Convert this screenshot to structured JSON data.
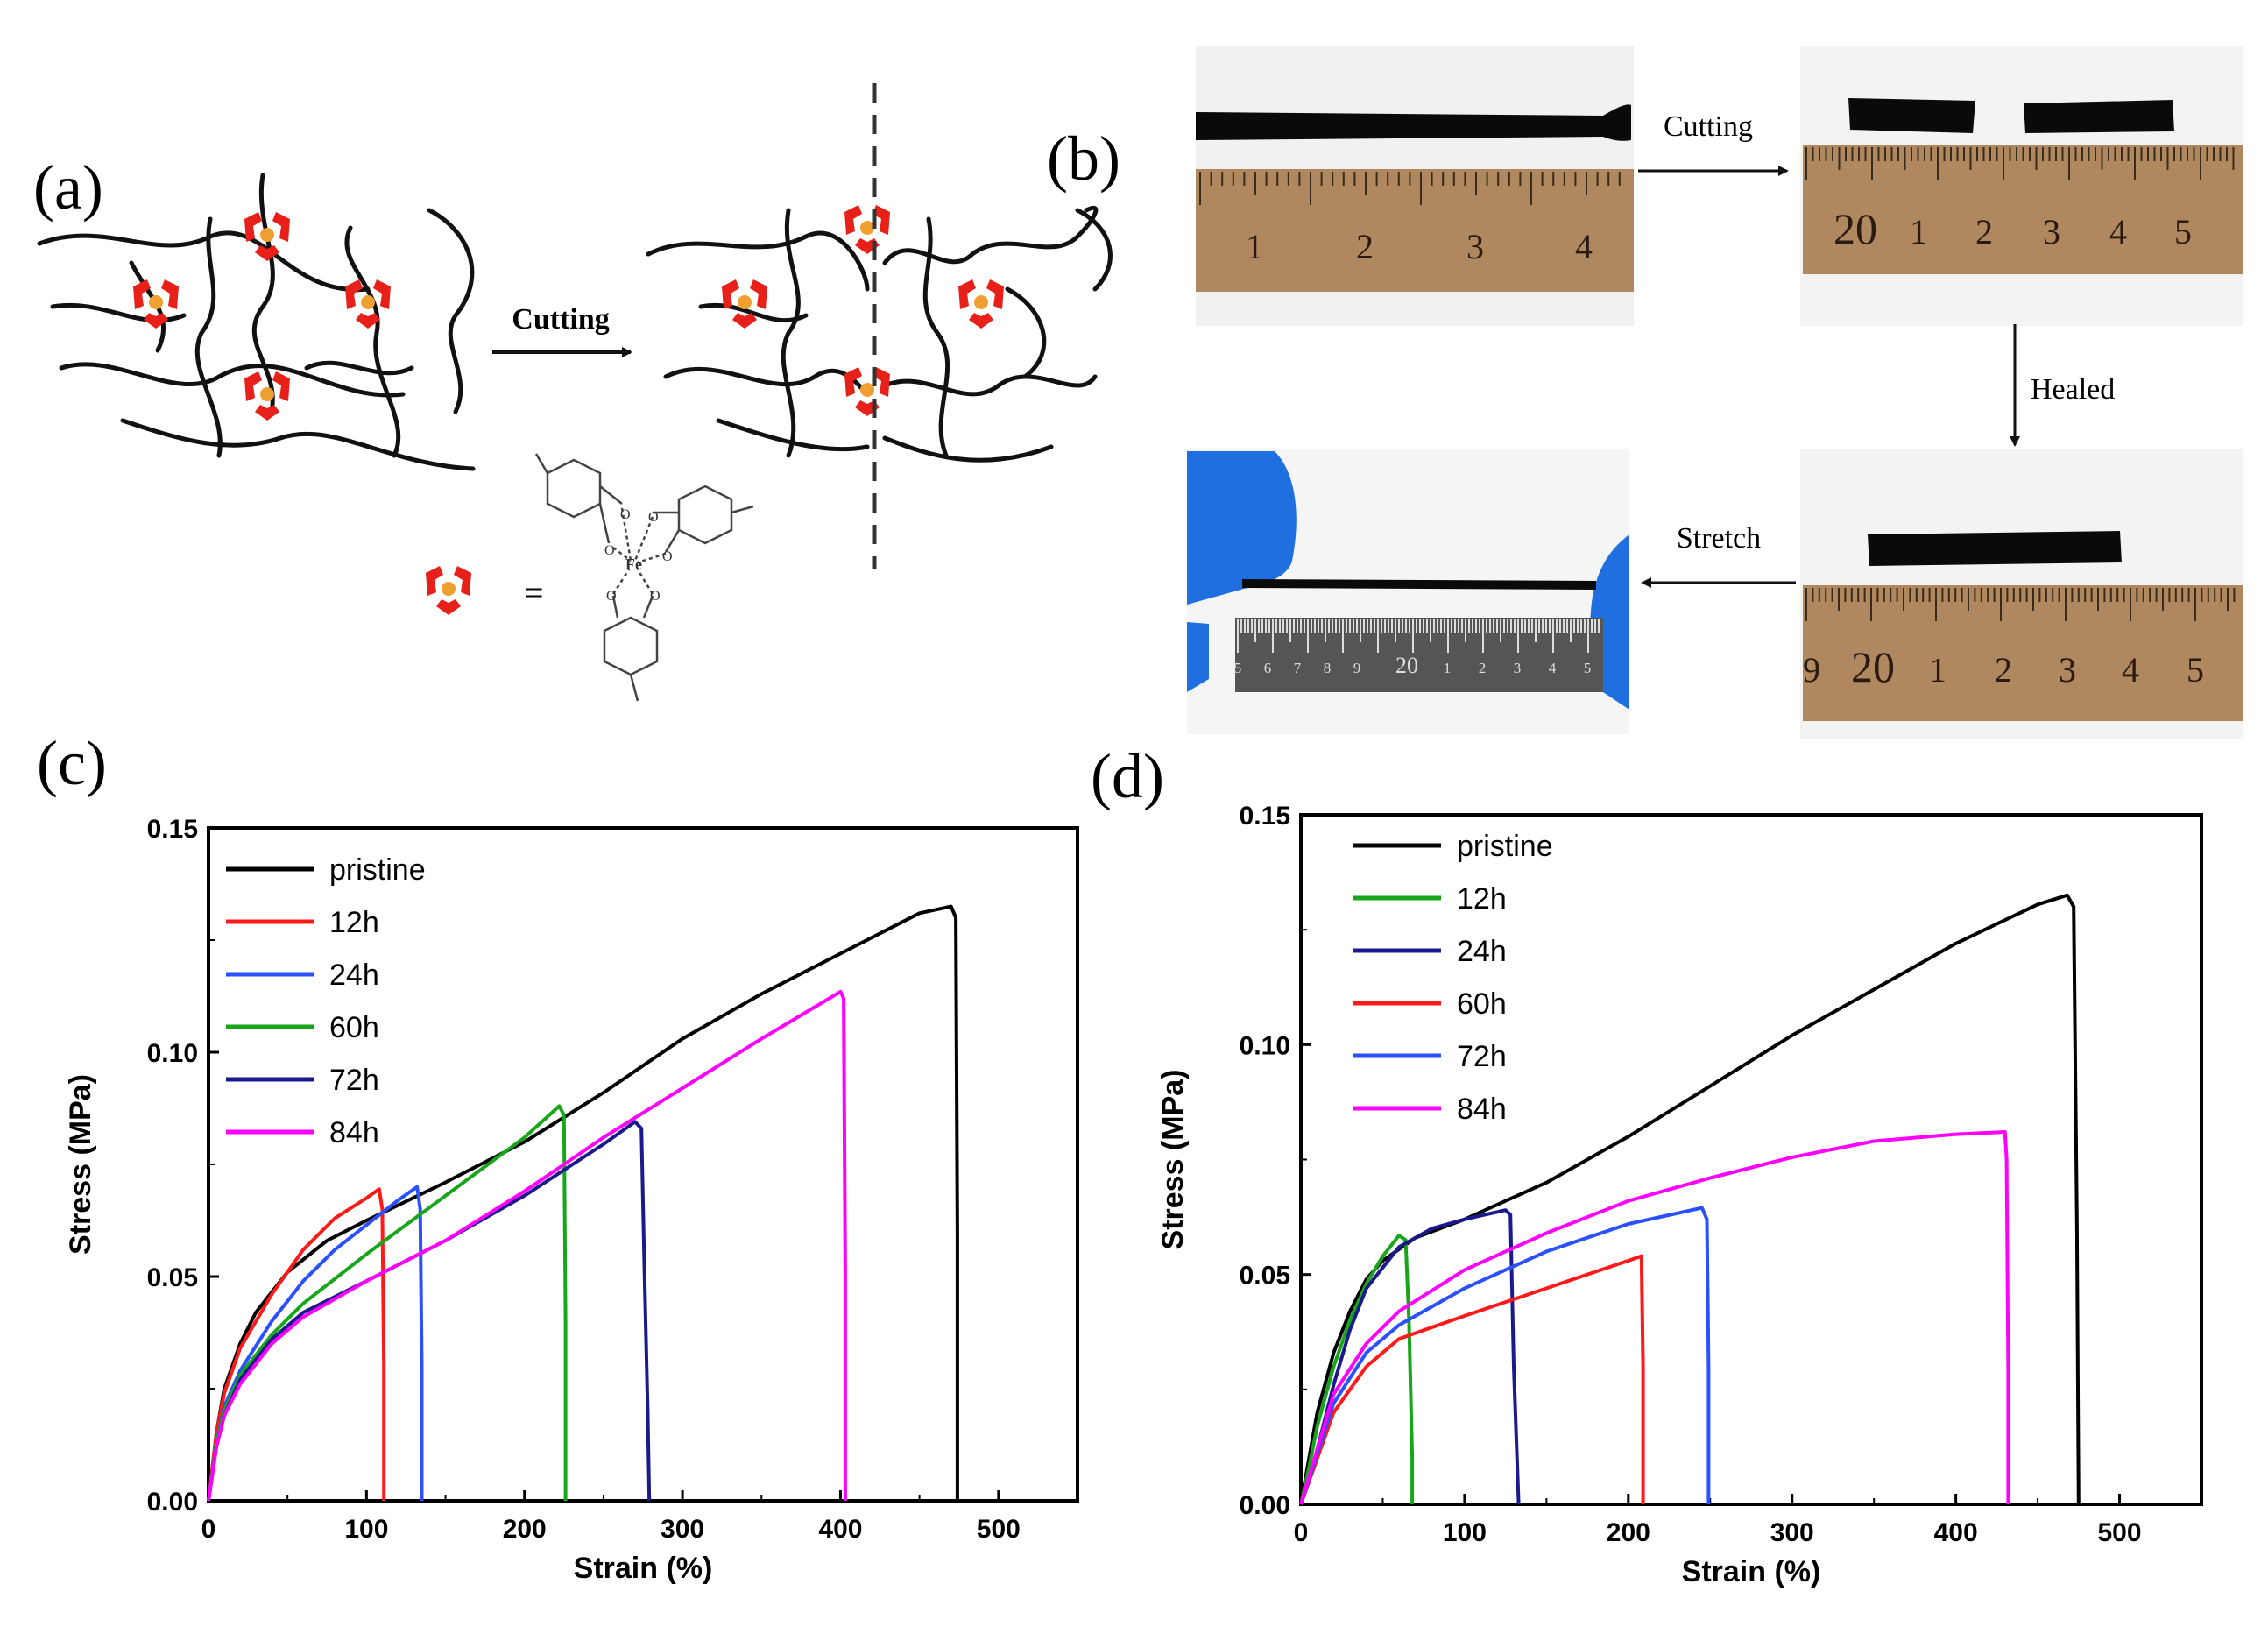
{
  "panel_labels": {
    "a": "(a)",
    "b": "(b)",
    "c": "(c)",
    "d": "(d)"
  },
  "panel_a": {
    "arrow_label": "Cutting",
    "equals": "=",
    "metal": "Fe",
    "oxygen": "O",
    "colors": {
      "ligand": "#e8201a",
      "metal_center": "#f0a030",
      "chain": "#111111"
    }
  },
  "panel_b": {
    "arrows": {
      "cutting": "Cutting",
      "healed": "Healed",
      "stretch": "Stretch"
    },
    "ruler1": [
      "1",
      "2",
      "3",
      "4"
    ],
    "ruler2": [
      "20",
      "1",
      "2",
      "3",
      "4",
      "5"
    ],
    "ruler3": [
      "9",
      "20",
      "1",
      "2",
      "3",
      "4",
      "5"
    ],
    "ruler4": [
      "5",
      "6",
      "7",
      "8",
      "9",
      "20",
      "1",
      "2",
      "3",
      "4",
      "5"
    ],
    "colors": {
      "glove": "#1f6fe0",
      "ruler": "#b08860",
      "sample": "#0a0a0a"
    }
  },
  "chart_data": [
    {
      "panel": "c",
      "type": "line",
      "xlabel": "Strain (%)",
      "ylabel": "Stress (MPa)",
      "xlim": [
        0,
        550
      ],
      "ylim": [
        0,
        0.15
      ],
      "xticks": [
        "0",
        "100",
        "200",
        "300",
        "400",
        "500"
      ],
      "xtick_values": [
        0,
        100,
        200,
        300,
        400,
        500
      ],
      "yticks": [
        "0.00",
        "0.05",
        "0.10",
        "0.15"
      ],
      "ytick_values": [
        0,
        0.05,
        0.1,
        0.15
      ],
      "legend_position": "top-left",
      "series": [
        {
          "name": "pristine",
          "color": "#000000",
          "points": [
            [
              0,
              0
            ],
            [
              5,
              0.015
            ],
            [
              10,
              0.025
            ],
            [
              20,
              0.035
            ],
            [
              30,
              0.042
            ],
            [
              50,
              0.051
            ],
            [
              75,
              0.058
            ],
            [
              100,
              0.0625
            ],
            [
              150,
              0.071
            ],
            [
              200,
              0.08
            ],
            [
              250,
              0.091
            ],
            [
              300,
              0.103
            ],
            [
              350,
              0.113
            ],
            [
              400,
              0.122
            ],
            [
              450,
              0.131
            ],
            [
              470,
              0.1325
            ],
            [
              473,
              0.13
            ],
            [
              474,
              0.06
            ],
            [
              474,
              0
            ]
          ]
        },
        {
          "name": "12h",
          "color": "#ff1a1a",
          "points": [
            [
              0,
              0
            ],
            [
              5,
              0.015
            ],
            [
              10,
              0.024
            ],
            [
              20,
              0.034
            ],
            [
              40,
              0.046
            ],
            [
              60,
              0.056
            ],
            [
              80,
              0.063
            ],
            [
              100,
              0.0675
            ],
            [
              108,
              0.0695
            ],
            [
              110,
              0.065
            ],
            [
              111,
              0.03
            ],
            [
              111,
              0
            ]
          ]
        },
        {
          "name": "24h",
          "color": "#2a50ff",
          "points": [
            [
              0,
              0
            ],
            [
              5,
              0.013
            ],
            [
              10,
              0.021
            ],
            [
              20,
              0.029
            ],
            [
              40,
              0.04
            ],
            [
              60,
              0.049
            ],
            [
              80,
              0.056
            ],
            [
              100,
              0.0615
            ],
            [
              120,
              0.067
            ],
            [
              132,
              0.07
            ],
            [
              134,
              0.065
            ],
            [
              135,
              0.03
            ],
            [
              135,
              0
            ]
          ]
        },
        {
          "name": "60h",
          "color": "#17a51a",
          "points": [
            [
              0,
              0
            ],
            [
              5,
              0.013
            ],
            [
              10,
              0.02
            ],
            [
              20,
              0.028
            ],
            [
              40,
              0.037
            ],
            [
              60,
              0.044
            ],
            [
              100,
              0.055
            ],
            [
              150,
              0.068
            ],
            [
              200,
              0.081
            ],
            [
              222,
              0.088
            ],
            [
              225,
              0.086
            ],
            [
              226,
              0.04
            ],
            [
              226,
              0
            ]
          ]
        },
        {
          "name": "72h",
          "color": "#1a1a8c",
          "points": [
            [
              0,
              0
            ],
            [
              5,
              0.012
            ],
            [
              10,
              0.019
            ],
            [
              20,
              0.027
            ],
            [
              40,
              0.036
            ],
            [
              60,
              0.042
            ],
            [
              100,
              0.049
            ],
            [
              150,
              0.058
            ],
            [
              200,
              0.068
            ],
            [
              250,
              0.0795
            ],
            [
              270,
              0.0845
            ],
            [
              274,
              0.083
            ],
            [
              276,
              0.05
            ],
            [
              278,
              0.02
            ],
            [
              279,
              0
            ]
          ]
        },
        {
          "name": "84h",
          "color": "#ff00ff",
          "points": [
            [
              0,
              0
            ],
            [
              5,
              0.012
            ],
            [
              10,
              0.019
            ],
            [
              20,
              0.026
            ],
            [
              40,
              0.035
            ],
            [
              60,
              0.041
            ],
            [
              100,
              0.049
            ],
            [
              150,
              0.058
            ],
            [
              200,
              0.069
            ],
            [
              250,
              0.081
            ],
            [
              300,
              0.092
            ],
            [
              350,
              0.103
            ],
            [
              400,
              0.1135
            ],
            [
              402,
              0.112
            ],
            [
              403,
              0.05
            ],
            [
              403,
              0
            ]
          ]
        }
      ]
    },
    {
      "panel": "d",
      "type": "line",
      "xlabel": "Strain (%)",
      "ylabel": "Stress (MPa)",
      "xlim": [
        0,
        550
      ],
      "ylim": [
        0,
        0.15
      ],
      "xticks": [
        "0",
        "100",
        "200",
        "300",
        "400",
        "500"
      ],
      "xtick_values": [
        0,
        100,
        200,
        300,
        400,
        500
      ],
      "yticks": [
        "0.00",
        "0.05",
        "0.10",
        "0.15"
      ],
      "ytick_values": [
        0,
        0.05,
        0.1,
        0.15
      ],
      "legend_position": "top-left",
      "series": [
        {
          "name": "pristine",
          "color": "#000000",
          "points": [
            [
              0,
              0
            ],
            [
              5,
              0.01
            ],
            [
              10,
              0.02
            ],
            [
              20,
              0.033
            ],
            [
              30,
              0.042
            ],
            [
              40,
              0.049
            ],
            [
              50,
              0.053
            ],
            [
              70,
              0.058
            ],
            [
              100,
              0.062
            ],
            [
              150,
              0.07
            ],
            [
              200,
              0.08
            ],
            [
              250,
              0.091
            ],
            [
              300,
              0.102
            ],
            [
              350,
              0.112
            ],
            [
              400,
              0.122
            ],
            [
              450,
              0.1305
            ],
            [
              468,
              0.1325
            ],
            [
              472,
              0.13
            ],
            [
              474,
              0.06
            ],
            [
              475,
              0
            ]
          ]
        },
        {
          "name": "12h",
          "color": "#17a51a",
          "points": [
            [
              0,
              0
            ],
            [
              5,
              0.008
            ],
            [
              10,
              0.017
            ],
            [
              20,
              0.03
            ],
            [
              30,
              0.04
            ],
            [
              40,
              0.048
            ],
            [
              50,
              0.054
            ],
            [
              60,
              0.0585
            ],
            [
              64,
              0.0575
            ],
            [
              66,
              0.04
            ],
            [
              68,
              0.01
            ],
            [
              68,
              0
            ]
          ]
        },
        {
          "name": "24h",
          "color": "#1a1a8c",
          "points": [
            [
              0,
              0
            ],
            [
              5,
              0.005
            ],
            [
              10,
              0.012
            ],
            [
              20,
              0.026
            ],
            [
              30,
              0.038
            ],
            [
              40,
              0.047
            ],
            [
              60,
              0.056
            ],
            [
              80,
              0.06
            ],
            [
              100,
              0.062
            ],
            [
              125,
              0.064
            ],
            [
              128,
              0.063
            ],
            [
              130,
              0.03
            ],
            [
              133,
              0
            ]
          ]
        },
        {
          "name": "60h",
          "color": "#ff1a1a",
          "points": [
            [
              0,
              0
            ],
            [
              10,
              0.01
            ],
            [
              20,
              0.02
            ],
            [
              40,
              0.03
            ],
            [
              60,
              0.036
            ],
            [
              100,
              0.041
            ],
            [
              150,
              0.047
            ],
            [
              200,
              0.053
            ],
            [
              208,
              0.054
            ],
            [
              209,
              0.03
            ],
            [
              209,
              0
            ]
          ]
        },
        {
          "name": "72h",
          "color": "#2a50ff",
          "points": [
            [
              0,
              0
            ],
            [
              10,
              0.011
            ],
            [
              20,
              0.022
            ],
            [
              40,
              0.033
            ],
            [
              60,
              0.039
            ],
            [
              100,
              0.047
            ],
            [
              150,
              0.055
            ],
            [
              200,
              0.061
            ],
            [
              245,
              0.0645
            ],
            [
              248,
              0.062
            ],
            [
              249,
              0.03
            ],
            [
              249,
              0
            ]
          ]
        },
        {
          "name": "84h",
          "color": "#ff00ff",
          "points": [
            [
              0,
              0
            ],
            [
              10,
              0.012
            ],
            [
              20,
              0.024
            ],
            [
              40,
              0.035
            ],
            [
              60,
              0.042
            ],
            [
              100,
              0.051
            ],
            [
              150,
              0.059
            ],
            [
              200,
              0.066
            ],
            [
              250,
              0.071
            ],
            [
              300,
              0.0755
            ],
            [
              350,
              0.079
            ],
            [
              400,
              0.0805
            ],
            [
              430,
              0.081
            ],
            [
              431,
              0.075
            ],
            [
              432,
              0.03
            ],
            [
              432,
              0
            ]
          ]
        }
      ]
    }
  ]
}
